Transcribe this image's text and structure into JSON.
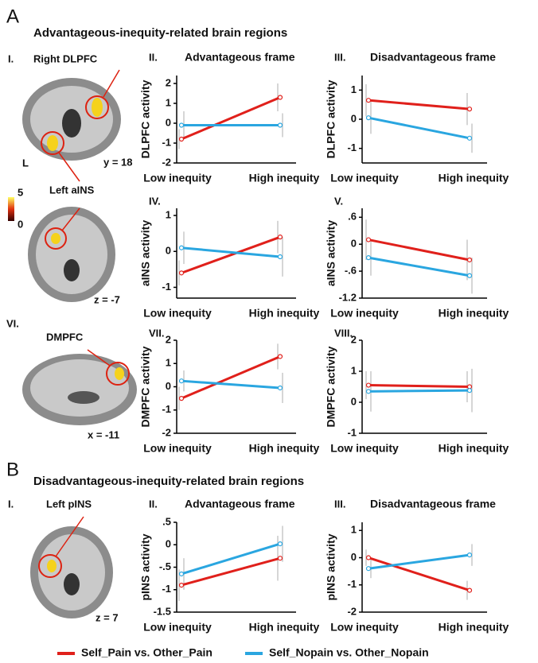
{
  "figure": {
    "section_a": {
      "letter": "A",
      "title": "Advantageous-inequity-related brain regions"
    },
    "section_b": {
      "letter": "B",
      "title": "Disadvantageous-inequity-related brain regions"
    },
    "brains": [
      {
        "panel": "I.",
        "region": "Right DLPFC",
        "coord": "y = 18",
        "side": "L"
      },
      {
        "region": "Left aINS",
        "coord": "z = -7"
      },
      {
        "panel": "VI.",
        "region": "DMPFC",
        "coord": "x = -11"
      },
      {
        "panel": "I.",
        "region": "Left pINS",
        "coord": "z = 7"
      }
    ],
    "colorbar": {
      "max": "5",
      "min": "0"
    }
  },
  "legend": [
    {
      "name": "Self_Pain vs. Other_Pain",
      "color": "#e0201b"
    },
    {
      "name": "Self_Nopain vs. Other_Nopain",
      "color": "#2aa6e0"
    }
  ],
  "chart_data": [
    {
      "type": "line",
      "panel": "II.",
      "title": "Advantageous frame",
      "ylabel": "DLPFC activity",
      "categories": [
        "Low inequity",
        "High inequity"
      ],
      "ylim": [
        -2,
        2.4
      ],
      "yticks": [
        -2,
        -1,
        0,
        1,
        2
      ],
      "series": [
        {
          "color": "#e0201b",
          "values": [
            -0.8,
            1.3
          ],
          "errors": [
            0.5,
            0.7
          ]
        },
        {
          "color": "#2aa6e0",
          "values": [
            -0.1,
            -0.1
          ],
          "errors": [
            0.7,
            0.6
          ]
        }
      ]
    },
    {
      "type": "line",
      "panel": "III.",
      "title": "Disadvantageous frame",
      "ylabel": "DLPFC activity",
      "categories": [
        "Low inequity",
        "High inequity"
      ],
      "ylim": [
        -1.5,
        1.5
      ],
      "yticks": [
        -1,
        0,
        1
      ],
      "series": [
        {
          "color": "#e0201b",
          "values": [
            0.65,
            0.35
          ],
          "errors": [
            0.55,
            0.55
          ]
        },
        {
          "color": "#2aa6e0",
          "values": [
            0.05,
            -0.65
          ],
          "errors": [
            0.55,
            0.5
          ]
        }
      ]
    },
    {
      "type": "line",
      "panel": "IV.",
      "ylabel": "aINS activity",
      "categories": [
        "Low inequity",
        "High inequity"
      ],
      "ylim": [
        -1.3,
        1.2
      ],
      "yticks": [
        -1,
        0,
        1
      ],
      "series": [
        {
          "color": "#e0201b",
          "values": [
            -0.6,
            0.4
          ],
          "errors": [
            0.35,
            0.45
          ]
        },
        {
          "color": "#2aa6e0",
          "values": [
            0.1,
            -0.15
          ],
          "errors": [
            0.45,
            0.55
          ]
        }
      ]
    },
    {
      "type": "line",
      "panel": "V.",
      "ylabel": "aINS activity",
      "categories": [
        "Low inequity",
        "High inequity"
      ],
      "ylim": [
        -1.2,
        0.8
      ],
      "yticks": [
        {
          "value": 0.6,
          "label": ".6"
        },
        0,
        {
          "value": -0.6,
          "label": "-.6"
        },
        -1.2
      ],
      "series": [
        {
          "color": "#e0201b",
          "values": [
            0.1,
            -0.35
          ],
          "errors": [
            0.45,
            0.45
          ]
        },
        {
          "color": "#2aa6e0",
          "values": [
            -0.3,
            -0.7
          ],
          "errors": [
            0.4,
            0.4
          ]
        }
      ]
    },
    {
      "type": "line",
      "panel": "VII.",
      "ylabel": "DMPFC activity",
      "categories": [
        "Low inequity",
        "High inequity"
      ],
      "ylim": [
        -2,
        2
      ],
      "yticks": [
        -2,
        -1,
        0,
        1,
        2
      ],
      "series": [
        {
          "color": "#e0201b",
          "values": [
            -0.5,
            1.3
          ],
          "errors": [
            0.5,
            0.55
          ]
        },
        {
          "color": "#2aa6e0",
          "values": [
            0.25,
            -0.05
          ],
          "errors": [
            0.45,
            0.65
          ]
        }
      ]
    },
    {
      "type": "line",
      "panel": "VIII.",
      "ylabel": "DMPFC activity",
      "categories": [
        "Low inequity",
        "High inequity"
      ],
      "ylim": [
        -1,
        2
      ],
      "yticks": [
        -1,
        0,
        1,
        2
      ],
      "series": [
        {
          "color": "#e0201b",
          "values": [
            0.55,
            0.5
          ],
          "errors": [
            0.45,
            0.5
          ]
        },
        {
          "color": "#2aa6e0",
          "values": [
            0.35,
            0.38
          ],
          "errors": [
            0.65,
            0.7
          ]
        }
      ]
    },
    {
      "type": "line",
      "panel": "II.",
      "title": "Advantageous frame",
      "ylabel": "pINS activity",
      "categories": [
        "Low inequity",
        "High inequity"
      ],
      "ylim": [
        -1.5,
        0.5
      ],
      "yticks": [
        {
          "value": 0.5,
          "label": ".5"
        },
        0,
        {
          "value": -0.5,
          "label": "-.5"
        },
        -1,
        -1.5
      ],
      "series": [
        {
          "color": "#e0201b",
          "values": [
            -0.9,
            -0.3
          ],
          "errors": [
            0.35,
            0.5
          ]
        },
        {
          "color": "#2aa6e0",
          "values": [
            -0.65,
            0.02
          ],
          "errors": [
            0.35,
            0.4
          ]
        }
      ]
    },
    {
      "type": "line",
      "panel": "III.",
      "title": "Disadvantageous frame",
      "ylabel": "pINS activity",
      "categories": [
        "Low inequity",
        "High inequity"
      ],
      "ylim": [
        -2,
        1.3
      ],
      "yticks": [
        -2,
        -1,
        0,
        1
      ],
      "series": [
        {
          "color": "#e0201b",
          "values": [
            0,
            -1.2
          ],
          "errors": [
            0.3,
            0.35
          ]
        },
        {
          "color": "#2aa6e0",
          "values": [
            -0.4,
            0.1
          ],
          "errors": [
            0.35,
            0.4
          ]
        }
      ]
    }
  ]
}
